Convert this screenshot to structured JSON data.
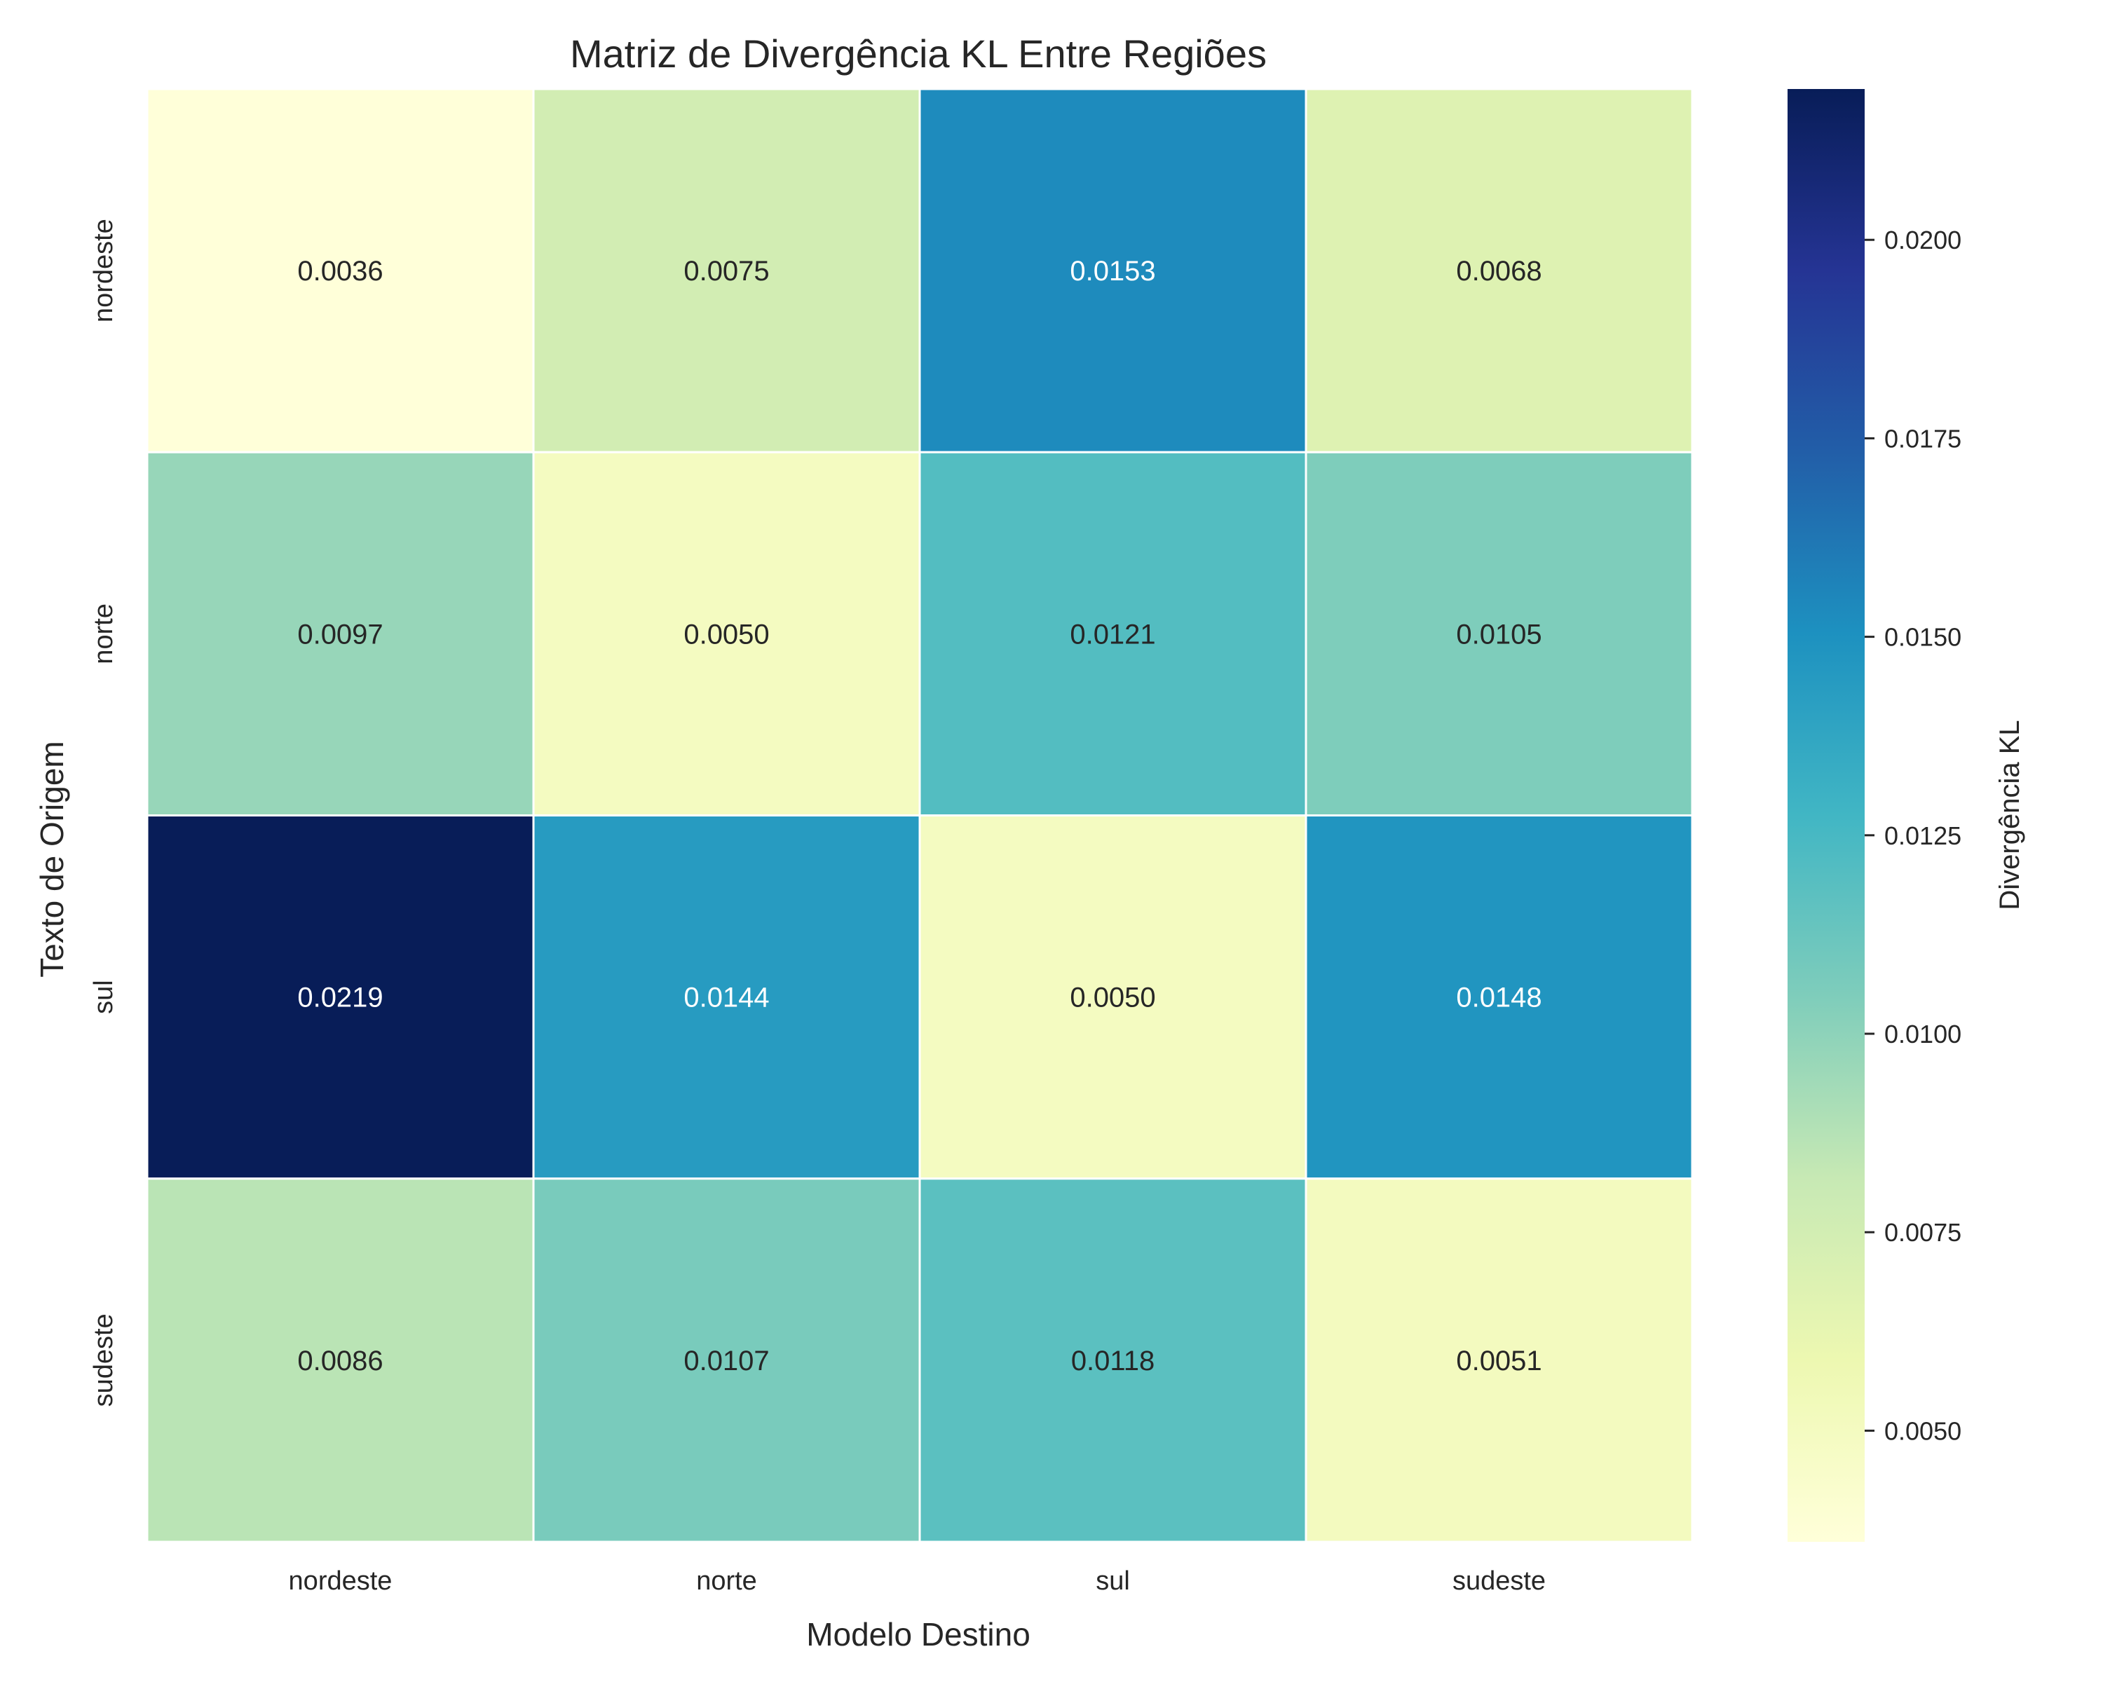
{
  "chart_data": {
    "type": "heatmap",
    "title": "Matriz de Divergência KL Entre Regiões",
    "xlabel": "Modelo Destino",
    "ylabel": "Texto de Origem",
    "x_categories": [
      "nordeste",
      "norte",
      "sul",
      "sudeste"
    ],
    "y_categories": [
      "nordeste",
      "norte",
      "sul",
      "sudeste"
    ],
    "values": [
      [
        0.0036,
        0.0075,
        0.0153,
        0.0068
      ],
      [
        0.0097,
        0.005,
        0.0121,
        0.0105
      ],
      [
        0.0219,
        0.0144,
        0.005,
        0.0148
      ],
      [
        0.0086,
        0.0107,
        0.0118,
        0.0051
      ]
    ],
    "value_labels": [
      [
        "0.0036",
        "0.0075",
        "0.0153",
        "0.0068"
      ],
      [
        "0.0097",
        "0.0050",
        "0.0121",
        "0.0105"
      ],
      [
        "0.0219",
        "0.0144",
        "0.0050",
        "0.0148"
      ],
      [
        "0.0086",
        "0.0107",
        "0.0118",
        "0.0051"
      ]
    ],
    "colormap": "YlGnBu",
    "color_range": [
      0.0036,
      0.0219
    ],
    "colorbar": {
      "label": "Divergência KL",
      "ticks": [
        0.005,
        0.0075,
        0.01,
        0.0125,
        0.015,
        0.0175,
        0.02
      ],
      "tick_labels": [
        "0.0050",
        "0.0075",
        "0.0100",
        "0.0125",
        "0.0150",
        "0.0175",
        "0.0200"
      ]
    },
    "grid": false,
    "legend": "colorbar-right"
  }
}
